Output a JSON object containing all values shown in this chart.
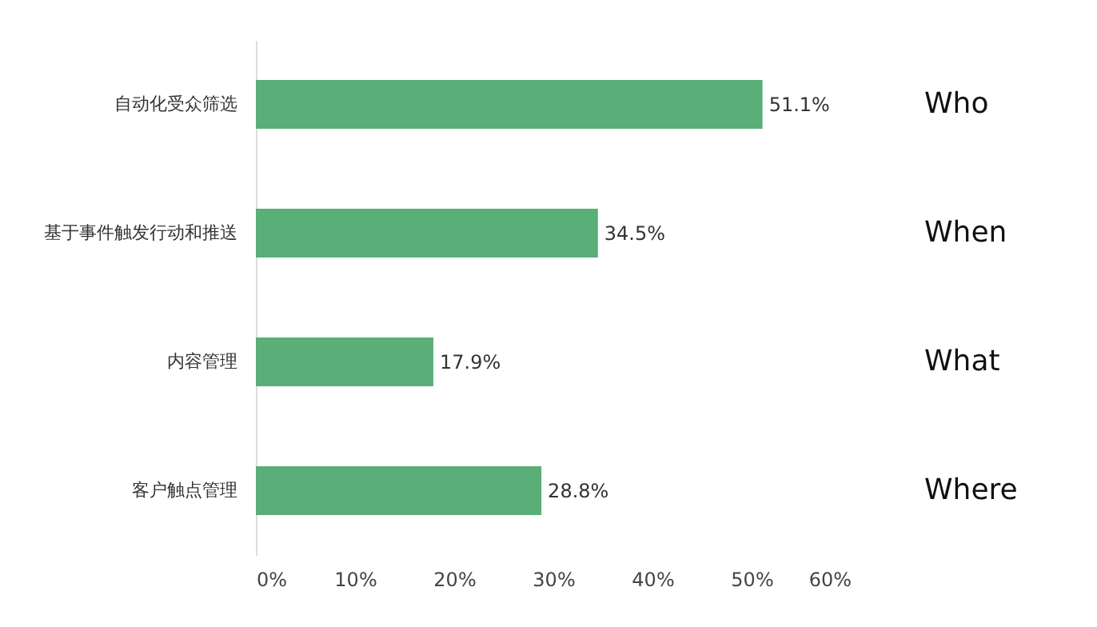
{
  "chart_data": {
    "type": "bar",
    "orientation": "horizontal",
    "categories": [
      "自动化受众筛选",
      "基于事件触发行动和推送",
      "内容管理",
      "客户触点管理"
    ],
    "values": [
      51.1,
      34.5,
      17.9,
      28.8
    ],
    "color": "#5aae78",
    "value_labels": [
      "51.1%",
      "34.5%",
      "17.9%",
      "28.8%"
    ],
    "xlim": [
      0,
      60
    ],
    "xticks": [
      {
        "value": 0,
        "label": "0%"
      },
      {
        "value": 10,
        "label": "10%"
      },
      {
        "value": 20,
        "label": "20%"
      },
      {
        "value": 30,
        "label": "30%"
      },
      {
        "value": 40,
        "label": "40%"
      },
      {
        "value": 50,
        "label": "50%"
      },
      {
        "value": 60,
        "label": "60%"
      }
    ],
    "annotations": [
      "Who",
      "When",
      "What",
      "Where"
    ],
    "grid": false
  }
}
